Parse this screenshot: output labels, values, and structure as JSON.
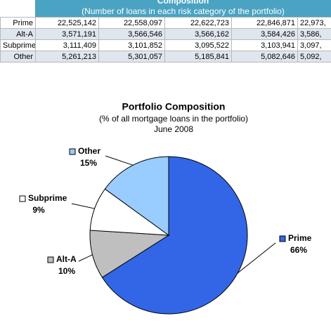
{
  "table": {
    "title": "Composition",
    "subtitle": "(Number of loans in each risk category of the portfolio)",
    "rows": [
      [
        "Prime",
        "22,525,142",
        "22,558,097",
        "22,622,723",
        "22,846,871",
        "22,973,"
      ],
      [
        "Alt-A",
        "3,571,191",
        "3,566,546",
        "3,566,162",
        "3,584,426",
        "3,586,"
      ],
      [
        "Subprime",
        "3,111,409",
        "3,101,852",
        "3,095,522",
        "3,103,941",
        "3,097,"
      ],
      [
        "Other",
        "5,261,213",
        "5,301,057",
        "5,185,841",
        "5,082,646",
        "5,092,"
      ]
    ]
  },
  "chart_data": {
    "type": "pie",
    "title": "Portfolio Composition",
    "subtitle": "(% of all mortgage loans in the portfolio)",
    "date": "June 2008",
    "categories": [
      "Prime",
      "Alt-A",
      "Subprime",
      "Other"
    ],
    "values": [
      66,
      10,
      9,
      15
    ],
    "value_labels": [
      "66%",
      "10%",
      "9%",
      "15%"
    ],
    "colors": [
      "#3366e6",
      "#bfbfbf",
      "#ffffff",
      "#99ccff"
    ]
  }
}
